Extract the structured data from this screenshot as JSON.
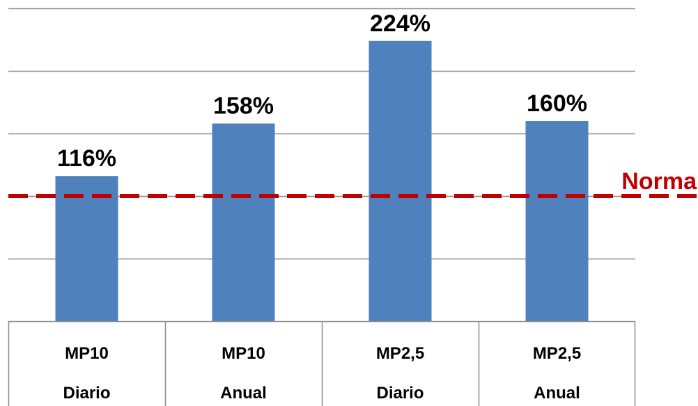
{
  "chart_data": {
    "type": "bar",
    "categories": [
      [
        "MP10",
        "Diario"
      ],
      [
        "MP10",
        "Anual"
      ],
      [
        "MP2,5",
        "Diario"
      ],
      [
        "MP2,5",
        "Anual"
      ]
    ],
    "values": [
      116,
      158,
      224,
      160
    ],
    "value_labels": [
      "116%",
      "158%",
      "224%",
      "160%"
    ],
    "ylim": [
      0,
      250
    ],
    "y_grid_step": 50,
    "grid": true,
    "bar_color": "#4F81BD",
    "reference_line": {
      "value": 100,
      "label": "Norma",
      "color": "#C00000",
      "style": "dashed"
    },
    "title": "",
    "xlabel": "",
    "ylabel": ""
  }
}
